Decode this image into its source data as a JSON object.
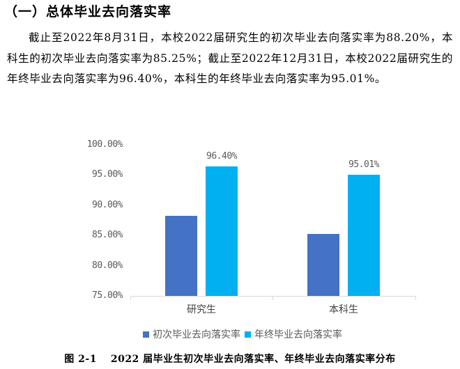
{
  "heading": "（一）总体毕业去向落实率",
  "paragraph": "截止至2022年8月31日，本校2022届研究生的初次毕业去向落实率为88.20%，本科生的初次毕业去向落实率为85.25%；截止至2022年12月31日，本校2022届研究生的年终毕业去向落实率为96.40%，本科生的年终毕业去向落实率为95.01%。",
  "caption": "图 2-1　 2022 届毕业生初次毕业去向落实率、年终毕业去向落实率分布",
  "colors": {
    "initial": "#4472c4",
    "yearend": "#00b0f0",
    "axis": "#d9d9d9",
    "tick_text": "#595959"
  },
  "chart_data": {
    "type": "bar",
    "title": "2022届毕业生初次毕业去向落实率、年终毕业去向落实率分布",
    "categories": [
      "研究生",
      "本科生"
    ],
    "series": [
      {
        "name": "初次毕业去向落实率",
        "values": [
          88.2,
          85.25
        ],
        "color": "#4472c4"
      },
      {
        "name": "年终毕业去向落实率",
        "values": [
          96.4,
          95.01
        ],
        "color": "#00b0f0"
      }
    ],
    "data_labels": {
      "年终毕业去向落实率": [
        "96.40%",
        "95.01%"
      ]
    },
    "yticks": [
      "100.00%",
      "95.00%",
      "90.00%",
      "85.00%",
      "80.00%",
      "75.00%"
    ],
    "ylim": [
      75,
      100
    ],
    "xlabel": "",
    "ylabel": "",
    "grid": false,
    "legend_position": "bottom"
  }
}
